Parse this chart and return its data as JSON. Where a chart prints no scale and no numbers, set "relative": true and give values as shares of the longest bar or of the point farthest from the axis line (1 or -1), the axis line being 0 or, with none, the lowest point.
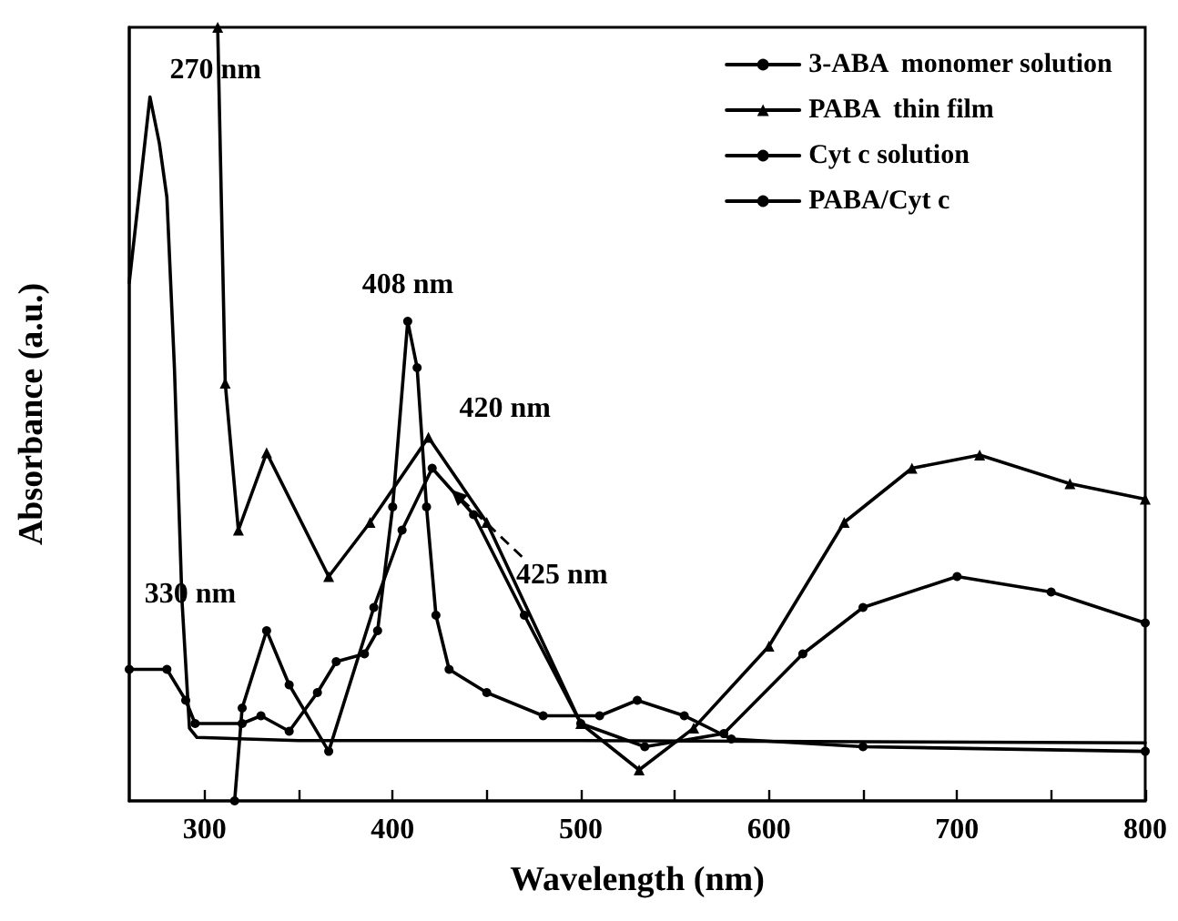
{
  "chart_data": {
    "type": "line",
    "relative": true,
    "xlabel": "Wavelength (nm)",
    "ylabel": "Absorbance (a.u.)",
    "xlim": [
      260,
      800
    ],
    "xticks": [
      300,
      {
        "value": 350,
        "label": null
      },
      400,
      {
        "value": 450,
        "label": null
      },
      500,
      {
        "value": 550,
        "label": null
      },
      600,
      {
        "value": 650,
        "label": null
      },
      700,
      {
        "value": 750,
        "label": null
      },
      800
    ],
    "legend": "top right",
    "grid": false,
    "series": [
      {
        "name": "3-ABA  monomer solution",
        "color": "#000000",
        "marker": "none",
        "x": [
          260,
          271,
          276,
          280,
          284,
          288,
          292,
          296,
          350,
          500,
          800
        ],
        "values": [
          0.67,
          0.91,
          0.85,
          0.78,
          0.56,
          0.26,
          0.094,
          0.082,
          0.078,
          0.078,
          0.075
        ]
      },
      {
        "name": "PABA  thin film",
        "color": "#000000",
        "marker": "triangle",
        "x": [
          307,
          311,
          318,
          333,
          366,
          388,
          419,
          450,
          500,
          531,
          560,
          600,
          640,
          676,
          712,
          760,
          800
        ],
        "values": [
          1.0,
          0.54,
          0.35,
          0.45,
          0.29,
          0.36,
          0.47,
          0.36,
          0.1,
          0.04,
          0.094,
          0.2,
          0.36,
          0.43,
          0.447,
          0.41,
          0.39
        ]
      },
      {
        "name": "Cyt c solution",
        "color": "#000000",
        "marker": "circle",
        "x": [
          260,
          280,
          290,
          295,
          320,
          330,
          345,
          360,
          370,
          385,
          392,
          400,
          408,
          413,
          418,
          423,
          430,
          450,
          480,
          510,
          530,
          555,
          580,
          650,
          800
        ],
        "values": [
          0.17,
          0.17,
          0.13,
          0.1,
          0.1,
          0.11,
          0.09,
          0.14,
          0.18,
          0.19,
          0.22,
          0.38,
          0.62,
          0.56,
          0.38,
          0.24,
          0.17,
          0.14,
          0.11,
          0.11,
          0.13,
          0.11,
          0.08,
          0.07,
          0.064
        ]
      },
      {
        "name": "PABA/Cyt c",
        "color": "#000000",
        "marker": "circle",
        "x": [
          316,
          320,
          333,
          345,
          366,
          390,
          405,
          421,
          443,
          470,
          500,
          534,
          576,
          618,
          650,
          700,
          750,
          800
        ],
        "values": [
          0,
          0.12,
          0.22,
          0.15,
          0.064,
          0.25,
          0.35,
          0.43,
          0.37,
          0.24,
          0.1,
          0.07,
          0.087,
          0.19,
          0.25,
          0.29,
          0.27,
          0.23
        ]
      }
    ],
    "annotations": [
      {
        "text": "270 nm",
        "x": 271,
        "y": 0.91
      },
      {
        "text": "330 nm",
        "x": 333,
        "y": 0.22
      },
      {
        "text": "408 nm",
        "x": 408,
        "y": 0.62
      },
      {
        "text": "420 nm",
        "x": 419,
        "y": 0.47
      },
      {
        "text": "425 nm",
        "x": 430,
        "y": 0.405
      }
    ]
  }
}
